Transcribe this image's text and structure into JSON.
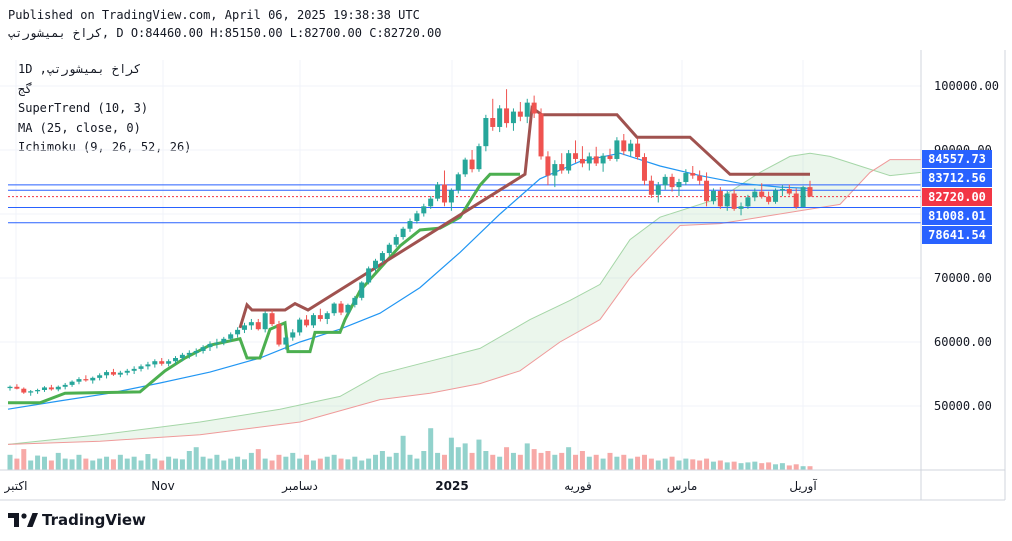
{
  "header": {
    "published": "Published on TradingView.com, April 06, 2025 19:38:38 UTC",
    "ohlc": "کراخ بمیشورتپ, D O:84460.00 H:85150.00 L:82700.00 C:82720.00"
  },
  "legend": {
    "symbol": "1D ,کراخ بمیشورتپ",
    "line2": "گج",
    "supertrend": "SuperTrend (10, 3)",
    "ma": "MA (25, close, 0)",
    "ichimoku": "Ichimoku (9, 26, 52, 26)"
  },
  "logo": {
    "text": "TradingView"
  },
  "colors": {
    "up": "#26a69a",
    "down": "#ef5350",
    "supertrend_up": "#4caf50",
    "supertrend_down": "#a0524f",
    "ma": "#2196f3",
    "cloud_green": "#a5d6a7",
    "cloud_red": "#ef9a9a",
    "label_blue": "#2962ff",
    "label_red": "#f23645"
  },
  "chart_data": {
    "type": "candlestick",
    "y_range": [
      40000,
      104000
    ],
    "y_ticks": [
      "100000.00",
      "90000.00",
      "80000.00",
      "70000.00",
      "60000.00",
      "50000.00"
    ],
    "x_labels": [
      "اکتبر",
      "Nov",
      "دسامبر",
      "2025",
      "فوریه",
      "مارس",
      "آوریل"
    ],
    "price_labels": [
      {
        "value": 84557.73,
        "text": "84557.73",
        "color": "blue"
      },
      {
        "value": 83712.56,
        "text": "83712.56",
        "color": "blue"
      },
      {
        "value": 82720.0,
        "text": "82720.00",
        "color": "red"
      },
      {
        "value": 81008.01,
        "text": "81008.01",
        "color": "blue"
      },
      {
        "value": 78641.54,
        "text": "78641.54",
        "color": "blue"
      }
    ],
    "candles": [
      [
        52800,
        53200,
        52400,
        53000
      ],
      [
        53000,
        53400,
        52600,
        52700
      ],
      [
        52700,
        52900,
        51900,
        52100
      ],
      [
        52100,
        52500,
        51600,
        52300
      ],
      [
        52300,
        52700,
        51900,
        52500
      ],
      [
        52500,
        53100,
        52200,
        52900
      ],
      [
        52900,
        53300,
        52400,
        52600
      ],
      [
        52600,
        53200,
        52300,
        53000
      ],
      [
        53000,
        53600,
        52600,
        53300
      ],
      [
        53300,
        54000,
        53000,
        53800
      ],
      [
        53800,
        54500,
        53400,
        54200
      ],
      [
        54200,
        54800,
        53800,
        54000
      ],
      [
        54000,
        54600,
        53500,
        54400
      ],
      [
        54400,
        55100,
        54000,
        54800
      ],
      [
        54800,
        55600,
        54300,
        55300
      ],
      [
        55300,
        55800,
        54700,
        54900
      ],
      [
        54900,
        55500,
        54500,
        55200
      ],
      [
        55200,
        55800,
        54800,
        55500
      ],
      [
        55500,
        56200,
        55000,
        55800
      ],
      [
        55800,
        56500,
        55400,
        56200
      ],
      [
        56200,
        56900,
        55700,
        56500
      ],
      [
        56500,
        57300,
        56000,
        57000
      ],
      [
        57000,
        57500,
        56300,
        56600
      ],
      [
        56600,
        57300,
        56200,
        57000
      ],
      [
        57000,
        57800,
        56500,
        57500
      ],
      [
        57500,
        58300,
        57000,
        58000
      ],
      [
        58000,
        58700,
        57400,
        58300
      ],
      [
        58300,
        59000,
        57700,
        58600
      ],
      [
        58600,
        59500,
        58200,
        59200
      ],
      [
        59200,
        60100,
        58600,
        59700
      ],
      [
        59700,
        60500,
        59000,
        59900
      ],
      [
        59900,
        60800,
        59500,
        60500
      ],
      [
        60500,
        61500,
        60000,
        61200
      ],
      [
        61200,
        62300,
        60700,
        61900
      ],
      [
        61900,
        63000,
        61400,
        62600
      ],
      [
        62600,
        63600,
        61900,
        63100
      ],
      [
        63100,
        63600,
        61800,
        62000
      ],
      [
        62000,
        64800,
        61500,
        64500
      ],
      [
        64500,
        65000,
        62500,
        62800
      ],
      [
        62800,
        63300,
        59300,
        59600
      ],
      [
        59600,
        61000,
        58800,
        60700
      ],
      [
        60700,
        62000,
        60200,
        61500
      ],
      [
        61500,
        63800,
        61000,
        63500
      ],
      [
        63500,
        64200,
        62300,
        62600
      ],
      [
        62600,
        64500,
        62200,
        64200
      ],
      [
        64200,
        65200,
        63200,
        63600
      ],
      [
        63600,
        64800,
        62800,
        64500
      ],
      [
        64500,
        66200,
        64100,
        66000
      ],
      [
        66000,
        66400,
        64200,
        64600
      ],
      [
        64600,
        66000,
        64000,
        65800
      ],
      [
        65800,
        67200,
        65400,
        66900
      ],
      [
        66900,
        69500,
        66500,
        69300
      ],
      [
        69300,
        71800,
        69000,
        71500
      ],
      [
        71500,
        73000,
        71000,
        72700
      ],
      [
        72700,
        74200,
        72300,
        73900
      ],
      [
        73900,
        75500,
        73500,
        75200
      ],
      [
        75200,
        76800,
        74800,
        76400
      ],
      [
        76400,
        78000,
        76000,
        77700
      ],
      [
        77700,
        79300,
        77200,
        78900
      ],
      [
        78900,
        80500,
        78500,
        80100
      ],
      [
        80100,
        81600,
        79600,
        81200
      ],
      [
        81200,
        82800,
        80800,
        82400
      ],
      [
        82400,
        85000,
        82000,
        84600
      ],
      [
        84600,
        86800,
        81200,
        81800
      ],
      [
        81800,
        84000,
        80500,
        83700
      ],
      [
        83700,
        86500,
        83200,
        86200
      ],
      [
        86200,
        88800,
        85800,
        88500
      ],
      [
        88500,
        90000,
        86500,
        87000
      ],
      [
        87000,
        91000,
        86600,
        90600
      ],
      [
        90600,
        95500,
        89800,
        95000
      ],
      [
        95000,
        98000,
        93000,
        93600
      ],
      [
        93600,
        97000,
        92800,
        96500
      ],
      [
        96500,
        99500,
        93500,
        94200
      ],
      [
        94200,
        96500,
        93000,
        96000
      ],
      [
        96000,
        97500,
        94500,
        95200
      ],
      [
        95200,
        98000,
        94200,
        97400
      ],
      [
        97400,
        98500,
        95000,
        95700
      ],
      [
        95700,
        96500,
        88500,
        89000
      ],
      [
        89000,
        89800,
        84500,
        86000
      ],
      [
        86000,
        88400,
        84200,
        87800
      ],
      [
        87800,
        89500,
        86300,
        86800
      ],
      [
        86800,
        90000,
        86300,
        89500
      ],
      [
        89500,
        91500,
        88000,
        88600
      ],
      [
        88600,
        90600,
        87300,
        87900
      ],
      [
        87900,
        89600,
        86800,
        89000
      ],
      [
        89000,
        90500,
        87500,
        87900
      ],
      [
        87900,
        89500,
        86600,
        89100
      ],
      [
        89100,
        90200,
        88300,
        88600
      ],
      [
        88600,
        92000,
        88200,
        91500
      ],
      [
        91500,
        92500,
        89200,
        89800
      ],
      [
        89800,
        91600,
        89000,
        91000
      ],
      [
        91000,
        91800,
        88500,
        88900
      ],
      [
        88900,
        89500,
        84500,
        85200
      ],
      [
        85200,
        86000,
        82500,
        83000
      ],
      [
        83000,
        85000,
        81800,
        84500
      ],
      [
        84500,
        86200,
        83800,
        85800
      ],
      [
        85800,
        86300,
        83500,
        84200
      ],
      [
        84200,
        85500,
        82800,
        85000
      ],
      [
        85000,
        87000,
        84500,
        86400
      ],
      [
        86400,
        87500,
        85500,
        86000
      ],
      [
        86000,
        86800,
        84600,
        85200
      ],
      [
        85200,
        86500,
        81200,
        82000
      ],
      [
        82000,
        84000,
        81500,
        83600
      ],
      [
        83600,
        84200,
        80800,
        81200
      ],
      [
        81200,
        83600,
        80500,
        83200
      ],
      [
        83200,
        83800,
        80500,
        80800
      ],
      [
        80800,
        81800,
        79800,
        81200
      ],
      [
        81200,
        83000,
        80800,
        82600
      ],
      [
        82600,
        84000,
        82000,
        83500
      ],
      [
        83500,
        84800,
        82400,
        82700
      ],
      [
        82700,
        83500,
        81500,
        81900
      ],
      [
        81900,
        84000,
        81600,
        83700
      ],
      [
        83700,
        84500,
        82800,
        83900
      ],
      [
        83900,
        84600,
        82900,
        83200
      ],
      [
        83200,
        84000,
        80800,
        81100
      ],
      [
        81100,
        84400,
        81000,
        84200
      ],
      [
        84200,
        85200,
        82700,
        82720
      ]
    ],
    "volumes": [
      40,
      30,
      55,
      25,
      38,
      35,
      25,
      45,
      30,
      28,
      40,
      30,
      25,
      30,
      35,
      28,
      40,
      30,
      35,
      25,
      42,
      30,
      25,
      35,
      30,
      28,
      50,
      60,
      35,
      30,
      40,
      25,
      30,
      35,
      28,
      45,
      55,
      30,
      25,
      40,
      35,
      45,
      30,
      40,
      25,
      30,
      35,
      40,
      30,
      28,
      35,
      25,
      30,
      40,
      50,
      35,
      45,
      90,
      40,
      30,
      50,
      110,
      45,
      40,
      85,
      60,
      70,
      45,
      80,
      50,
      40,
      35,
      60,
      45,
      40,
      70,
      55,
      45,
      50,
      40,
      45,
      60,
      40,
      50,
      35,
      40,
      30,
      45,
      35,
      40,
      30,
      35,
      40,
      30,
      25,
      30,
      35,
      25,
      30,
      28,
      25,
      30,
      22,
      25,
      20,
      22,
      18,
      20,
      22,
      18,
      20,
      15,
      18,
      12,
      15,
      10
    ],
    "supertrend_up": [
      [
        8,
        50500
      ],
      [
        40,
        50500
      ],
      [
        65,
        52000
      ],
      [
        140,
        52200
      ],
      [
        165,
        55500
      ],
      [
        185,
        57500
      ],
      [
        210,
        59500
      ],
      [
        240,
        60500
      ],
      [
        247,
        57500
      ],
      [
        260,
        57500
      ],
      [
        270,
        62000
      ],
      [
        285,
        63000
      ],
      [
        288,
        58500
      ],
      [
        310,
        58500
      ],
      [
        315,
        61500
      ],
      [
        340,
        61500
      ],
      [
        345,
        63500
      ],
      [
        360,
        68000
      ],
      [
        380,
        71500
      ],
      [
        400,
        75000
      ],
      [
        420,
        77500
      ],
      [
        440,
        77800
      ],
      [
        460,
        79500
      ],
      [
        480,
        84500
      ],
      [
        490,
        86200
      ],
      [
        520,
        86200
      ]
    ],
    "supertrend_down": [
      [
        240,
        62200
      ],
      [
        247,
        65800
      ],
      [
        252,
        65000
      ],
      [
        285,
        65000
      ],
      [
        295,
        66000
      ],
      [
        308,
        65000
      ],
      [
        525,
        86200
      ],
      [
        532,
        96600
      ],
      [
        542,
        95500
      ],
      [
        617,
        95500
      ],
      [
        637,
        92000
      ],
      [
        690,
        92000
      ],
      [
        730,
        86200
      ],
      [
        810,
        86200
      ]
    ],
    "ma": [
      [
        8,
        49500
      ],
      [
        60,
        50800
      ],
      [
        110,
        52000
      ],
      [
        160,
        53600
      ],
      [
        210,
        55300
      ],
      [
        260,
        57500
      ],
      [
        300,
        60000
      ],
      [
        340,
        62000
      ],
      [
        380,
        64500
      ],
      [
        420,
        68500
      ],
      [
        460,
        74000
      ],
      [
        500,
        80000
      ],
      [
        540,
        85500
      ],
      [
        580,
        88200
      ],
      [
        620,
        89500
      ],
      [
        660,
        87500
      ],
      [
        700,
        86000
      ],
      [
        740,
        84800
      ],
      [
        780,
        84200
      ],
      [
        810,
        84000
      ]
    ],
    "span_a": [
      [
        8,
        44000
      ],
      [
        100,
        45500
      ],
      [
        200,
        47500
      ],
      [
        280,
        49500
      ],
      [
        340,
        51500
      ],
      [
        380,
        55000
      ],
      [
        430,
        57000
      ],
      [
        480,
        59000
      ],
      [
        530,
        63500
      ],
      [
        570,
        66500
      ],
      [
        600,
        69000
      ],
      [
        630,
        76000
      ],
      [
        660,
        79500
      ],
      [
        720,
        82500
      ],
      [
        760,
        86500
      ],
      [
        790,
        89000
      ],
      [
        810,
        89500
      ],
      [
        830,
        89000
      ],
      [
        860,
        87500
      ],
      [
        890,
        86000
      ],
      [
        921,
        86500
      ]
    ],
    "span_b": [
      [
        8,
        44000
      ],
      [
        100,
        44500
      ],
      [
        200,
        45500
      ],
      [
        300,
        47500
      ],
      [
        380,
        51000
      ],
      [
        430,
        52000
      ],
      [
        480,
        53500
      ],
      [
        520,
        55500
      ],
      [
        560,
        60000
      ],
      [
        600,
        63500
      ],
      [
        630,
        70000
      ],
      [
        660,
        75000
      ],
      [
        680,
        78200
      ],
      [
        720,
        78500
      ],
      [
        760,
        79500
      ],
      [
        800,
        80500
      ],
      [
        840,
        81500
      ],
      [
        870,
        86500
      ],
      [
        890,
        88500
      ],
      [
        921,
        88500
      ]
    ],
    "cloud_bounds": [
      [
        8,
        600
      ],
      [
        600,
        921
      ]
    ]
  }
}
